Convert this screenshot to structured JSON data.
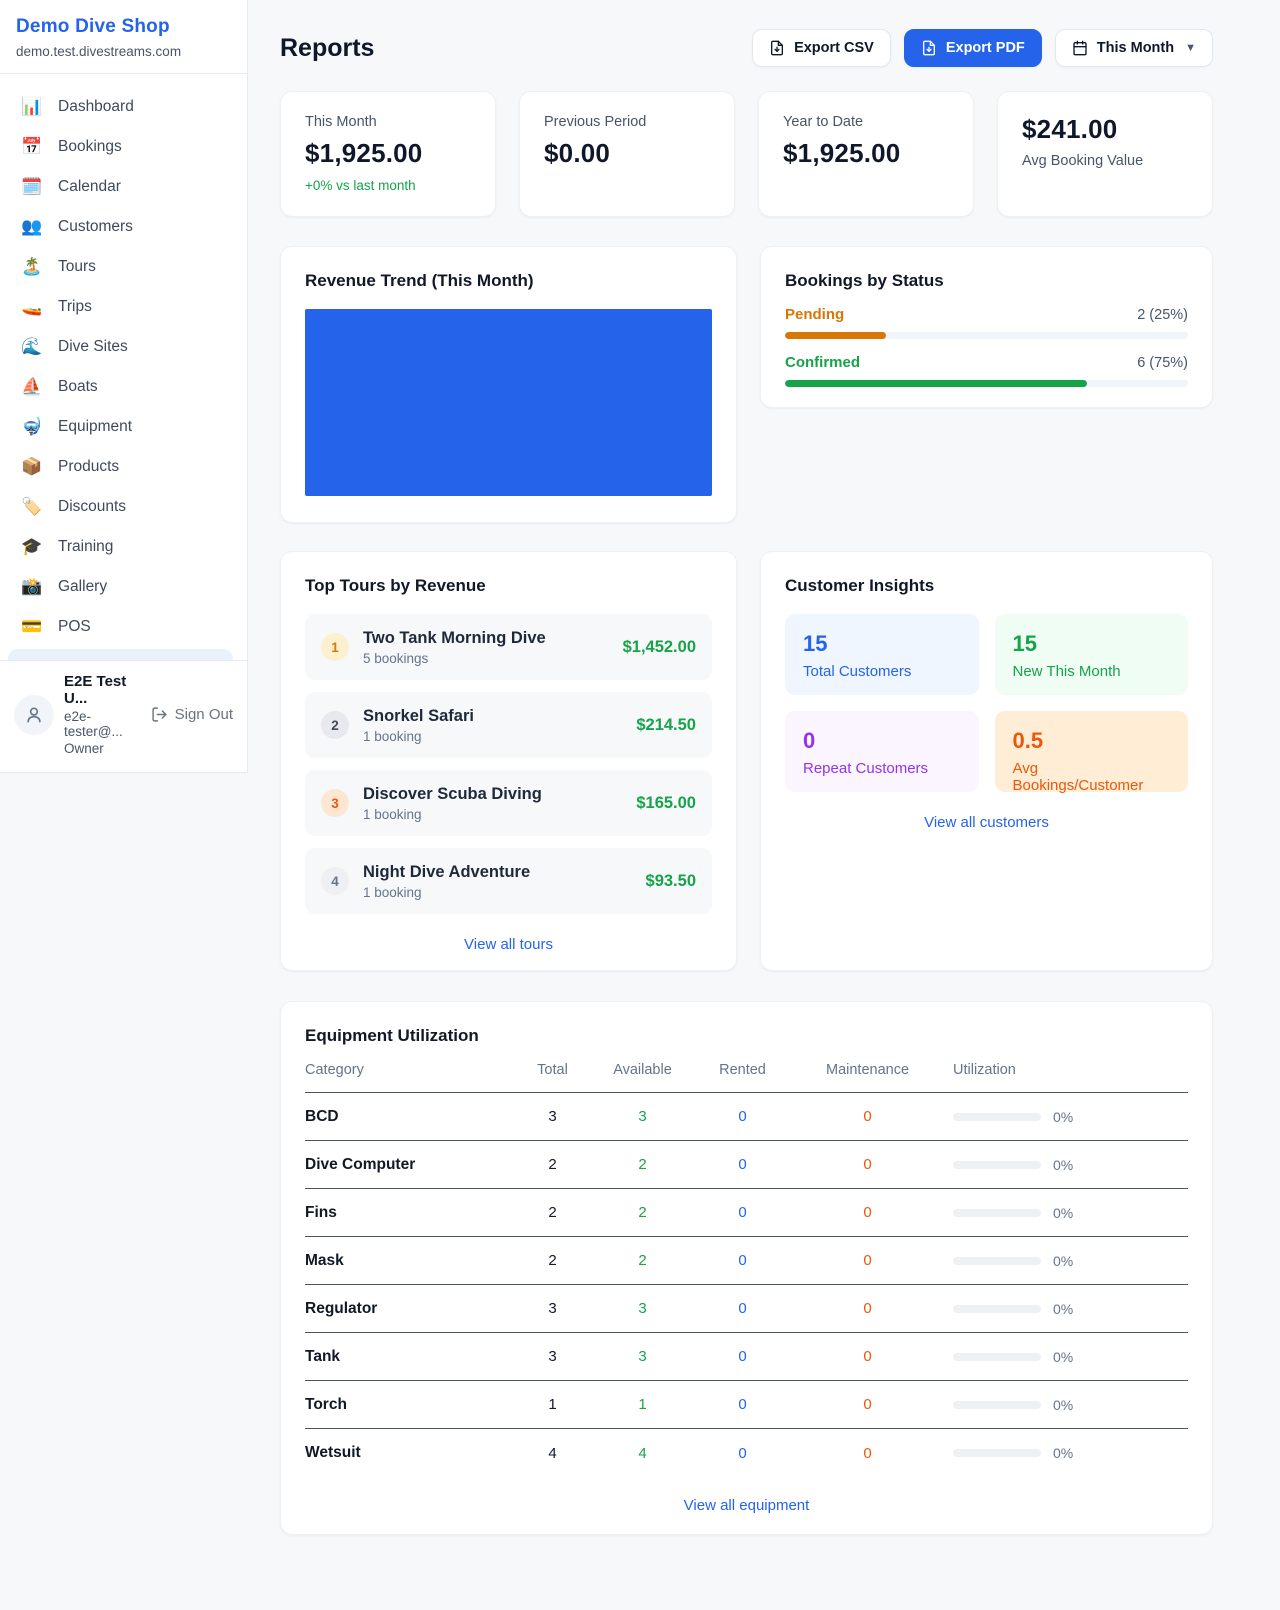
{
  "colors": {
    "accent_blue": "#2563eb",
    "green": "#16a34a",
    "amber": "#d97706",
    "orange": "#ea580c",
    "purple": "#9333ea",
    "chart_bar_blue": "#2563eb"
  },
  "sidebar": {
    "shop_name": "Demo Dive Shop",
    "domain": "demo.test.divestreams.com",
    "items": [
      {
        "icon": "📊",
        "label": "Dashboard"
      },
      {
        "icon": "📅",
        "label": "Bookings"
      },
      {
        "icon": "🗓️",
        "label": "Calendar"
      },
      {
        "icon": "👥",
        "label": "Customers"
      },
      {
        "icon": "🏝️",
        "label": "Tours"
      },
      {
        "icon": "🚤",
        "label": "Trips"
      },
      {
        "icon": "🌊",
        "label": "Dive Sites"
      },
      {
        "icon": "⛵",
        "label": "Boats"
      },
      {
        "icon": "🤿",
        "label": "Equipment"
      },
      {
        "icon": "📦",
        "label": "Products"
      },
      {
        "icon": "🏷️",
        "label": "Discounts"
      },
      {
        "icon": "🎓",
        "label": "Training"
      },
      {
        "icon": "📸",
        "label": "Gallery"
      },
      {
        "icon": "💳",
        "label": "POS"
      }
    ],
    "user": {
      "name": "E2E Test U...",
      "email": "e2e-tester@...",
      "role": "Owner",
      "sign_out_label": "Sign Out"
    }
  },
  "header": {
    "title": "Reports",
    "export_csv_label": "Export CSV",
    "export_pdf_label": "Export PDF",
    "period_label": "This Month"
  },
  "stats": [
    {
      "label": "This Month",
      "value": "$1,925.00",
      "delta": "+0% vs last month"
    },
    {
      "label": "Previous Period",
      "value": "$0.00"
    },
    {
      "label": "Year to Date",
      "value": "$1,925.00"
    },
    {
      "label": "Avg Booking Value",
      "value": "$241.00"
    }
  ],
  "revenue_trend": {
    "title": "Revenue Trend (This Month)",
    "fill_pct": 100
  },
  "bookings_by_status": {
    "title": "Bookings by Status",
    "rows": [
      {
        "label": "Pending",
        "count_text": "2 (25%)",
        "pct": 25
      },
      {
        "label": "Confirmed",
        "count_text": "6 (75%)",
        "pct": 75
      }
    ]
  },
  "top_tours": {
    "title": "Top Tours by Revenue",
    "link_label": "View all tours",
    "rows": [
      {
        "rank": "1",
        "name": "Two Tank Morning Dive",
        "bookings": "5 bookings",
        "amount": "$1,452.00"
      },
      {
        "rank": "2",
        "name": "Snorkel Safari",
        "bookings": "1 booking",
        "amount": "$214.50"
      },
      {
        "rank": "3",
        "name": "Discover Scuba Diving",
        "bookings": "1 booking",
        "amount": "$165.00"
      },
      {
        "rank": "4",
        "name": "Night Dive Adventure",
        "bookings": "1 booking",
        "amount": "$93.50"
      }
    ]
  },
  "customer_insights": {
    "title": "Customer Insights",
    "link_label": "View all customers",
    "tiles": [
      {
        "value": "15",
        "label": "Total Customers"
      },
      {
        "value": "15",
        "label": "New This Month"
      },
      {
        "value": "0",
        "label": "Repeat Customers"
      },
      {
        "value": "0.5",
        "label": "Avg Bookings/Customer"
      }
    ]
  },
  "equipment": {
    "title": "Equipment Utilization",
    "link_label": "View all equipment",
    "columns": [
      "Category",
      "Total",
      "Available",
      "Rented",
      "Maintenance",
      "Utilization"
    ],
    "rows": [
      {
        "category": "BCD",
        "total": "3",
        "available": "3",
        "rented": "0",
        "maintenance": "0",
        "utilization": "0%",
        "pct": 0
      },
      {
        "category": "Dive Computer",
        "total": "2",
        "available": "2",
        "rented": "0",
        "maintenance": "0",
        "utilization": "0%",
        "pct": 0
      },
      {
        "category": "Fins",
        "total": "2",
        "available": "2",
        "rented": "0",
        "maintenance": "0",
        "utilization": "0%",
        "pct": 0
      },
      {
        "category": "Mask",
        "total": "2",
        "available": "2",
        "rented": "0",
        "maintenance": "0",
        "utilization": "0%",
        "pct": 0
      },
      {
        "category": "Regulator",
        "total": "3",
        "available": "3",
        "rented": "0",
        "maintenance": "0",
        "utilization": "0%",
        "pct": 0
      },
      {
        "category": "Tank",
        "total": "3",
        "available": "3",
        "rented": "0",
        "maintenance": "0",
        "utilization": "0%",
        "pct": 0
      },
      {
        "category": "Torch",
        "total": "1",
        "available": "1",
        "rented": "0",
        "maintenance": "0",
        "utilization": "0%",
        "pct": 0
      },
      {
        "category": "Wetsuit",
        "total": "4",
        "available": "4",
        "rented": "0",
        "maintenance": "0",
        "utilization": "0%",
        "pct": 0
      }
    ]
  }
}
